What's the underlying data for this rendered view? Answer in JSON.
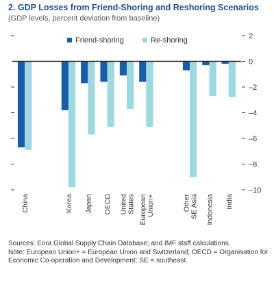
{
  "title": "2. GDP Losses from Friend-Shoring and Reshoring Scenarios",
  "subtitle": "(GDP levels, percent deviation from baseline)",
  "chart_data": {
    "type": "bar",
    "categories": [
      [
        "China"
      ],
      [
        "Korea"
      ],
      [
        "Japan"
      ],
      [
        "OECD"
      ],
      [
        "United",
        "States"
      ],
      [
        "European",
        "Union+"
      ],
      [
        "Other",
        "SE Asia"
      ],
      [
        "Indonesia"
      ],
      [
        "India"
      ]
    ],
    "groups": [
      0,
      1,
      1,
      1,
      1,
      1,
      2,
      2,
      2
    ],
    "series": [
      {
        "name": "Friend-shoring",
        "color": "#1a5ea8",
        "values": [
          -6.7,
          -3.8,
          -1.7,
          -1.6,
          -1.1,
          -1.6,
          -0.7,
          -0.3,
          -0.2
        ]
      },
      {
        "name": "Re-shoring",
        "color": "#9ed8e0",
        "values": [
          -6.9,
          -9.8,
          -5.7,
          -5.1,
          -3.7,
          -5.1,
          -9.0,
          -2.7,
          -2.8
        ]
      }
    ],
    "ylim": [
      -10,
      2
    ],
    "yticks": [
      2,
      0,
      -2,
      -4,
      -6,
      -8,
      -10
    ],
    "ytick_labels": [
      "2",
      "0",
      "–2",
      "–4",
      "–6",
      "–8",
      "–10"
    ],
    "legend_position": "top-left",
    "grid": false
  },
  "notes": {
    "sources": "Sources: Eora Global Supply Chain Database; and IMF staff calculations.",
    "note": "Note: European Union+ = European Union and Switzerland; OECD = Organisation for Economic Co-operation and Development; SE = southeast."
  }
}
